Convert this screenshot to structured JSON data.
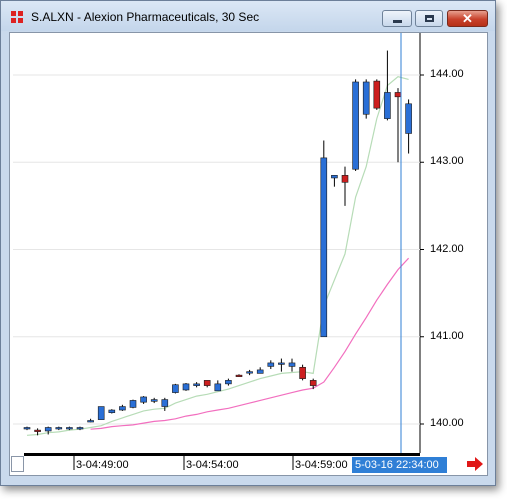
{
  "window": {
    "title": "S.ALXN - Alexion Pharmaceuticals, 30 Sec",
    "app_icon": "chart-app-icon",
    "buttons": {
      "minimize": "minimize-icon",
      "maximize": "maximize-icon",
      "close": "close-icon"
    }
  },
  "colors": {
    "up_candle": "#2a6fd6",
    "down_candle": "#cc1f1f",
    "fast_ma": "#b7dcb7",
    "slow_ma": "#f26fbf",
    "cursor_line": "#2f7fd6",
    "grid": "#e6e6e6"
  },
  "chart_data": {
    "type": "candlestick",
    "y_axis": {
      "ticks": [
        "144.00",
        "143.00",
        "142.00",
        "141.00",
        "140.00"
      ],
      "ylim": [
        139.8,
        144.5
      ],
      "position": "right"
    },
    "x_axis": {
      "ticks": [
        "3-04:49:00",
        "3-04:54:00",
        "3-04:59:00"
      ]
    },
    "cursor_time": "5-03-16 22:34:00",
    "grid": true,
    "candles": [
      {
        "o": 139.95,
        "h": 139.97,
        "l": 139.93,
        "c": 139.96
      },
      {
        "o": 139.93,
        "h": 139.95,
        "l": 139.87,
        "c": 139.92
      },
      {
        "o": 139.92,
        "h": 139.97,
        "l": 139.88,
        "c": 139.96
      },
      {
        "o": 139.95,
        "h": 139.97,
        "l": 139.93,
        "c": 139.96
      },
      {
        "o": 139.95,
        "h": 139.97,
        "l": 139.93,
        "c": 139.96
      },
      {
        "o": 139.95,
        "h": 139.97,
        "l": 139.93,
        "c": 139.96
      },
      {
        "o": 140.04,
        "h": 140.06,
        "l": 140.02,
        "c": 140.04
      },
      {
        "o": 140.05,
        "h": 140.2,
        "l": 140.05,
        "c": 140.2
      },
      {
        "o": 140.13,
        "h": 140.17,
        "l": 140.12,
        "c": 140.16
      },
      {
        "o": 140.16,
        "h": 140.22,
        "l": 140.15,
        "c": 140.2
      },
      {
        "o": 140.19,
        "h": 140.28,
        "l": 140.18,
        "c": 140.27
      },
      {
        "o": 140.25,
        "h": 140.32,
        "l": 140.23,
        "c": 140.31
      },
      {
        "o": 140.26,
        "h": 140.3,
        "l": 140.24,
        "c": 140.28
      },
      {
        "o": 140.2,
        "h": 140.3,
        "l": 140.15,
        "c": 140.28
      },
      {
        "o": 140.36,
        "h": 140.46,
        "l": 140.35,
        "c": 140.45
      },
      {
        "o": 140.39,
        "h": 140.47,
        "l": 140.38,
        "c": 140.46
      },
      {
        "o": 140.44,
        "h": 140.48,
        "l": 140.42,
        "c": 140.46
      },
      {
        "o": 140.5,
        "h": 140.5,
        "l": 140.42,
        "c": 140.44
      },
      {
        "o": 140.38,
        "h": 140.5,
        "l": 140.38,
        "c": 140.46
      },
      {
        "o": 140.46,
        "h": 140.52,
        "l": 140.44,
        "c": 140.5
      },
      {
        "o": 140.56,
        "h": 140.57,
        "l": 140.54,
        "c": 140.55
      },
      {
        "o": 140.6,
        "h": 140.62,
        "l": 140.56,
        "c": 140.6
      },
      {
        "o": 140.58,
        "h": 140.65,
        "l": 140.58,
        "c": 140.62
      },
      {
        "o": 140.66,
        "h": 140.73,
        "l": 140.63,
        "c": 140.7
      },
      {
        "o": 140.7,
        "h": 140.75,
        "l": 140.6,
        "c": 140.7
      },
      {
        "o": 140.66,
        "h": 140.75,
        "l": 140.6,
        "c": 140.7
      },
      {
        "o": 140.65,
        "h": 140.68,
        "l": 140.5,
        "c": 140.52
      },
      {
        "o": 140.5,
        "h": 140.52,
        "l": 140.4,
        "c": 140.44
      },
      {
        "o": 141.0,
        "h": 143.25,
        "l": 141.0,
        "c": 143.05
      },
      {
        "o": 142.82,
        "h": 142.85,
        "l": 142.72,
        "c": 142.85
      },
      {
        "o": 142.85,
        "h": 142.95,
        "l": 142.5,
        "c": 142.77
      },
      {
        "o": 142.92,
        "h": 143.95,
        "l": 142.9,
        "c": 143.92
      },
      {
        "o": 143.55,
        "h": 143.95,
        "l": 143.5,
        "c": 143.92
      },
      {
        "o": 143.93,
        "h": 143.95,
        "l": 143.6,
        "c": 143.62
      },
      {
        "o": 143.5,
        "h": 144.28,
        "l": 143.48,
        "c": 143.8
      },
      {
        "o": 143.8,
        "h": 143.85,
        "l": 143.0,
        "c": 143.75
      },
      {
        "o": 143.33,
        "h": 143.72,
        "l": 143.1,
        "c": 143.67
      }
    ],
    "fast_ma": [
      139.87,
      139.88,
      139.9,
      139.91,
      139.93,
      139.94,
      139.96,
      139.98,
      140.03,
      140.07,
      140.11,
      140.15,
      140.17,
      140.18,
      140.24,
      140.28,
      140.32,
      140.34,
      140.37,
      140.4,
      140.44,
      140.48,
      140.52,
      140.55,
      140.58,
      140.59,
      140.6,
      140.58,
      141.35,
      141.65,
      141.95,
      142.6,
      142.95,
      143.5,
      143.88,
      143.98,
      143.95
    ],
    "slow_ma": [
      null,
      null,
      null,
      null,
      null,
      null,
      139.94,
      139.95,
      139.97,
      139.98,
      139.99,
      140.01,
      140.03,
      140.04,
      140.06,
      140.09,
      140.11,
      140.14,
      140.16,
      140.18,
      140.21,
      140.24,
      140.27,
      140.3,
      140.33,
      140.36,
      140.39,
      140.41,
      140.48,
      140.65,
      140.83,
      141.03,
      141.22,
      141.42,
      141.6,
      141.77,
      141.9
    ]
  }
}
